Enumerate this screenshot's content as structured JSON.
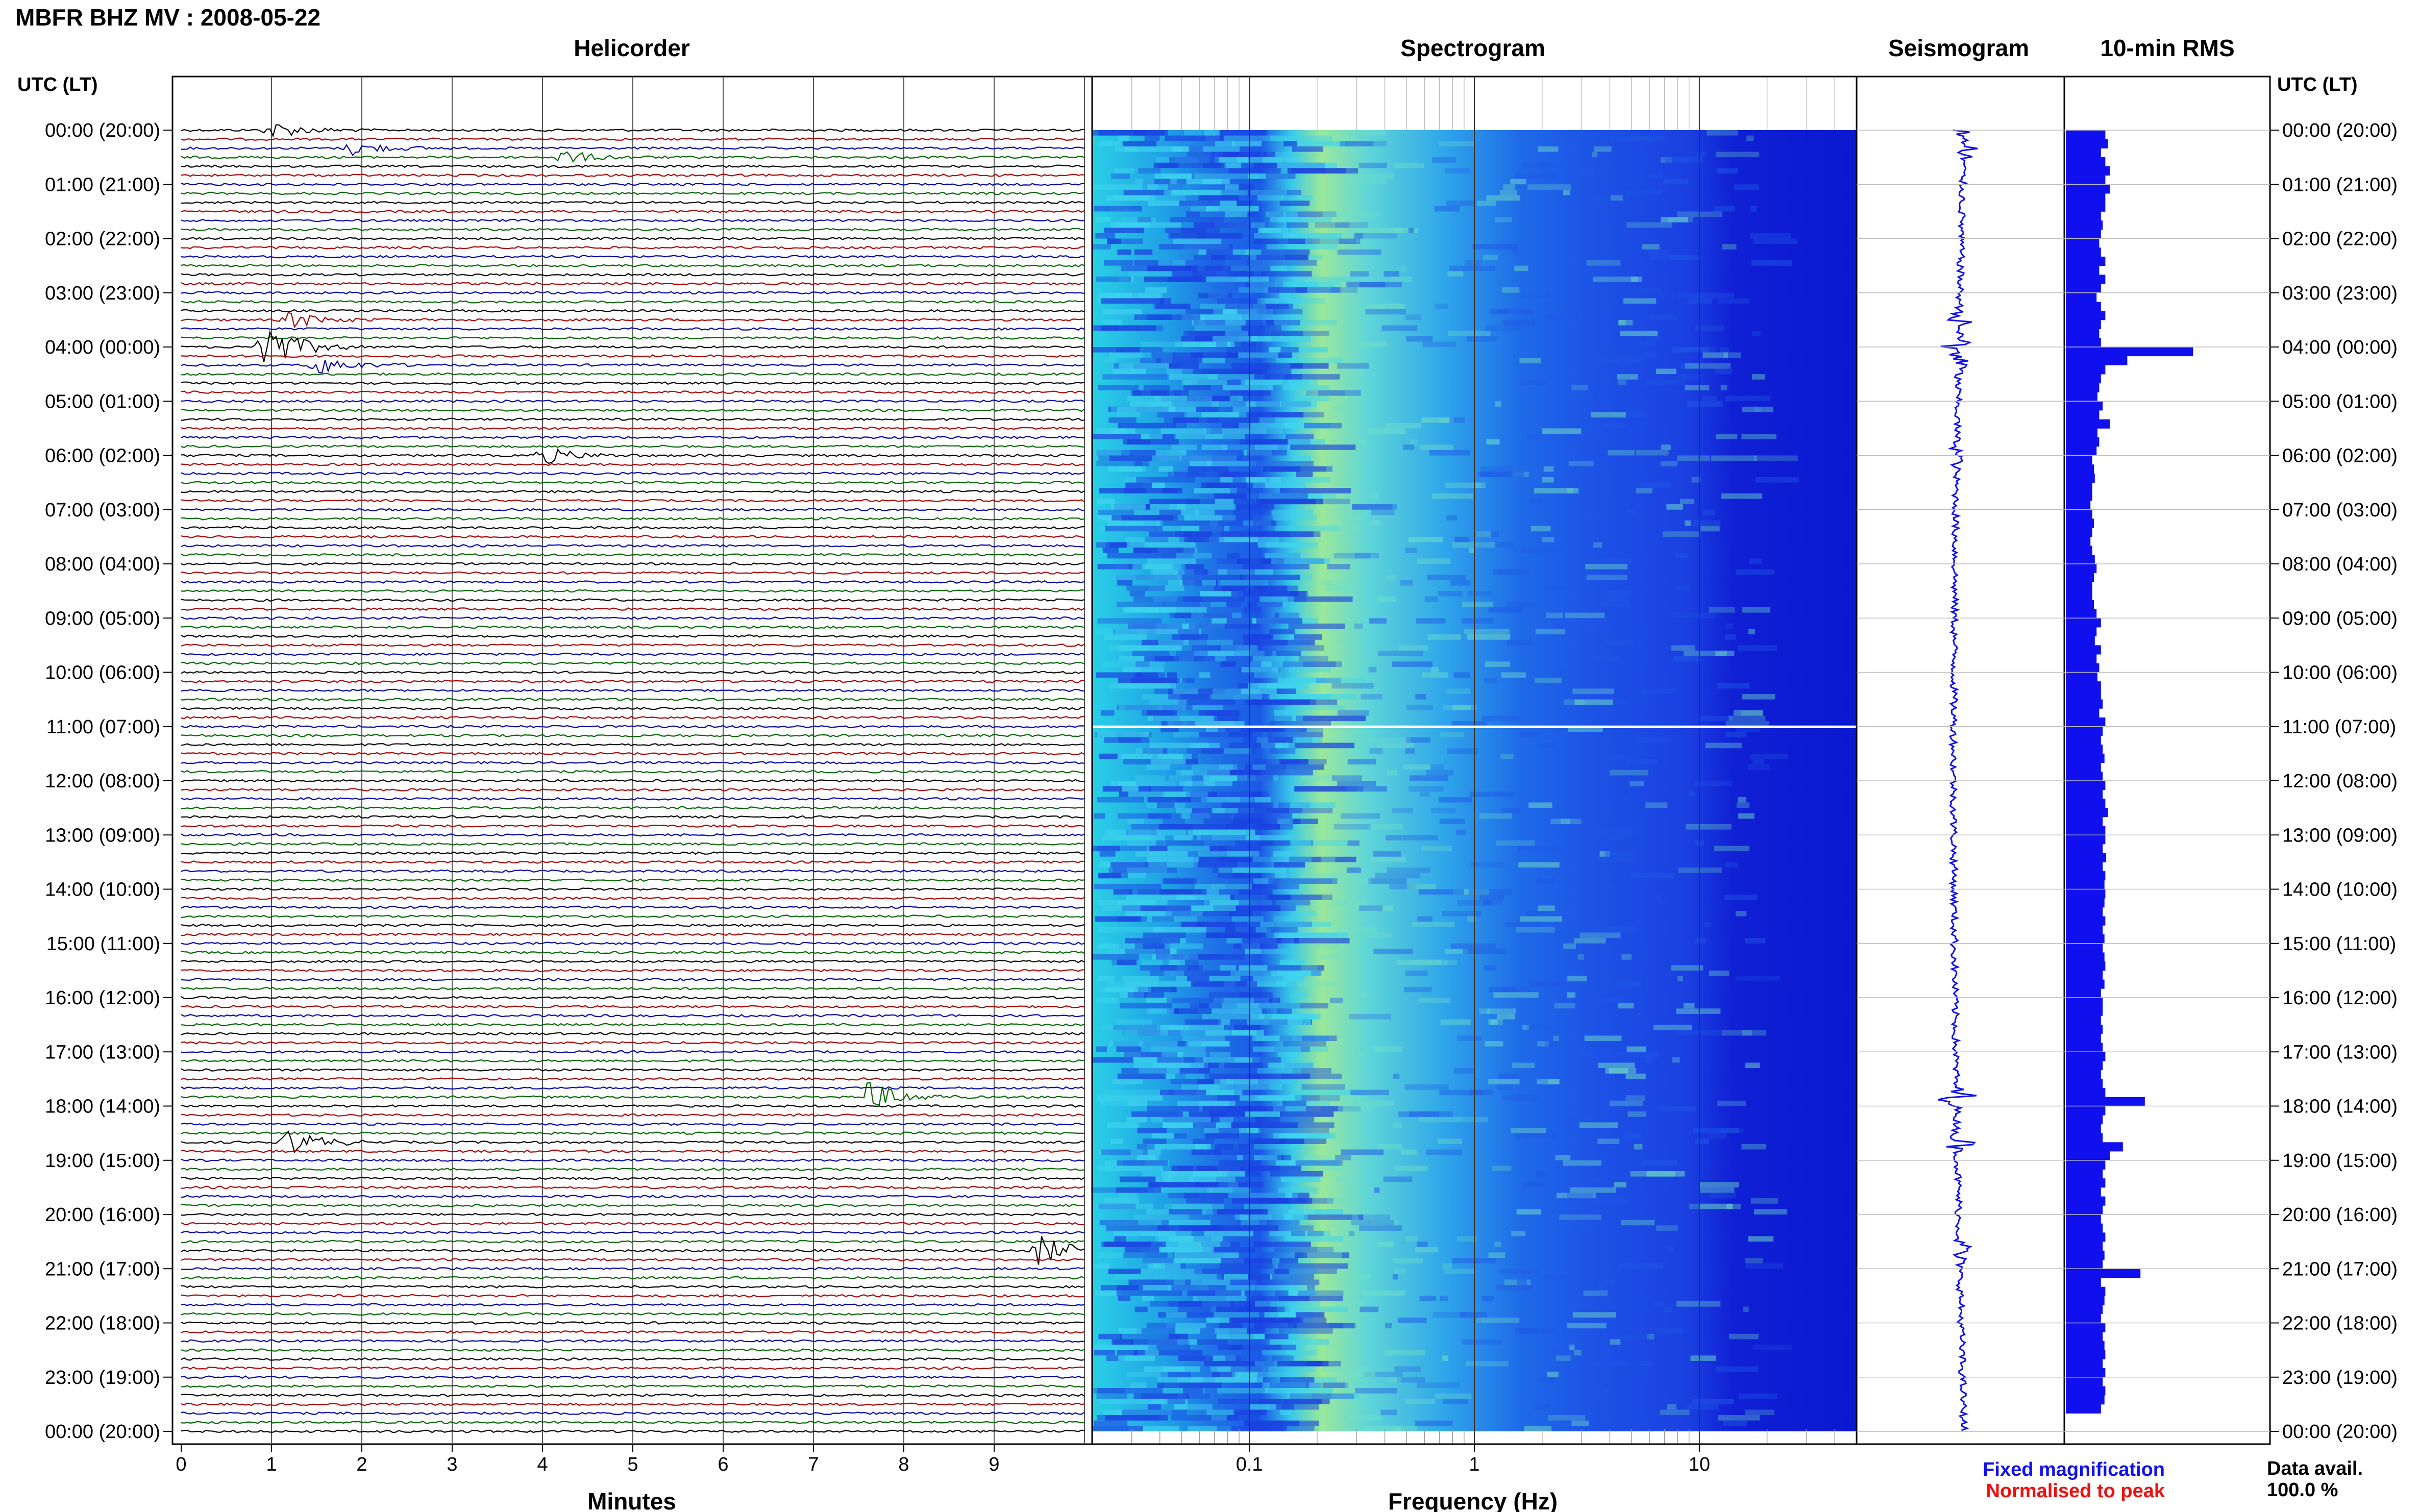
{
  "header": {
    "title": "MBFR BHZ MV : 2008-05-22"
  },
  "panels": {
    "helicorder": "Helicorder",
    "spectrogram": "Spectrogram",
    "seismogram": "Seismogram",
    "rms": "10-min RMS"
  },
  "axes": {
    "time_label_left": "UTC (LT)",
    "time_label_right": "UTC (LT)",
    "helicorder_xlabel": "Minutes",
    "spectrogram_xlabel": "Frequency (Hz)"
  },
  "legend": {
    "fixed": "Fixed magnification",
    "normalised": "Normalised to peak",
    "fixed_color": "#1010ee",
    "normalised_color": "#ee1010"
  },
  "data_avail": {
    "label": "Data avail.",
    "value": "100.0 %"
  },
  "chart_data": {
    "type": "seismic_summary",
    "time_ticks": [
      "00:00 (20:00)",
      "01:00 (21:00)",
      "02:00 (22:00)",
      "03:00 (23:00)",
      "04:00 (00:00)",
      "05:00 (01:00)",
      "06:00 (02:00)",
      "07:00 (03:00)",
      "08:00 (04:00)",
      "09:00 (05:00)",
      "10:00 (06:00)",
      "11:00 (07:00)",
      "12:00 (08:00)",
      "13:00 (09:00)",
      "14:00 (10:00)",
      "15:00 (11:00)",
      "16:00 (12:00)",
      "17:00 (13:00)",
      "18:00 (14:00)",
      "19:00 (15:00)",
      "20:00 (16:00)",
      "21:00 (17:00)",
      "22:00 (18:00)",
      "23:00 (19:00)",
      "00:00 (20:00)"
    ],
    "helicorder": {
      "minutes_ticks": [
        "0",
        "1",
        "2",
        "3",
        "4",
        "5",
        "6",
        "7",
        "8",
        "9"
      ],
      "minutes_range": [
        0,
        10
      ],
      "lines_per_hour": 6,
      "trace_colors": [
        "#000000",
        "#aa0000",
        "#0000aa",
        "#006600"
      ],
      "events": [
        {
          "hour": 0.0,
          "minute": 1.0,
          "amp": 0.3
        },
        {
          "hour": 0.33,
          "minute": 1.9,
          "amp": 0.25
        },
        {
          "hour": 0.5,
          "minute": 4.2,
          "amp": 0.25
        },
        {
          "hour": 3.5,
          "minute": 1.2,
          "amp": 0.3
        },
        {
          "hour": 4.0,
          "minute": 0.9,
          "amp": 1.0
        },
        {
          "hour": 4.33,
          "minute": 1.5,
          "amp": 0.35
        },
        {
          "hour": 6.0,
          "minute": 4.0,
          "amp": 0.3
        },
        {
          "hour": 17.83,
          "minute": 7.6,
          "amp": 0.55
        },
        {
          "hour": 18.67,
          "minute": 1.2,
          "amp": 0.45
        },
        {
          "hour": 20.67,
          "minute": 9.5,
          "amp": 0.55
        }
      ]
    },
    "spectrogram": {
      "xscale": "log",
      "xlim_hz": [
        0.02,
        50
      ],
      "x_ticks": [
        "0.1",
        "1",
        "10"
      ]
    },
    "rms": {
      "bins_per_hour": 6,
      "values": [
        0.45,
        0.48,
        0.4,
        0.45,
        0.5,
        0.45,
        0.5,
        0.45,
        0.45,
        0.4,
        0.42,
        0.4,
        0.38,
        0.4,
        0.45,
        0.38,
        0.45,
        0.4,
        0.35,
        0.4,
        0.45,
        0.4,
        0.38,
        0.4,
        1.45,
        0.7,
        0.45,
        0.4,
        0.38,
        0.36,
        0.42,
        0.38,
        0.5,
        0.36,
        0.38,
        0.35,
        0.3,
        0.32,
        0.33,
        0.3,
        0.3,
        0.28,
        0.3,
        0.32,
        0.3,
        0.28,
        0.3,
        0.33,
        0.35,
        0.32,
        0.3,
        0.3,
        0.32,
        0.35,
        0.4,
        0.35,
        0.33,
        0.4,
        0.35,
        0.38,
        0.36,
        0.4,
        0.4,
        0.42,
        0.38,
        0.45,
        0.42,
        0.4,
        0.42,
        0.44,
        0.4,
        0.42,
        0.45,
        0.42,
        0.45,
        0.48,
        0.42,
        0.45,
        0.45,
        0.42,
        0.46,
        0.42,
        0.45,
        0.44,
        0.45,
        0.44,
        0.42,
        0.45,
        0.42,
        0.44,
        0.42,
        0.44,
        0.45,
        0.42,
        0.44,
        0.4,
        0.42,
        0.42,
        0.4,
        0.42,
        0.4,
        0.42,
        0.45,
        0.42,
        0.4,
        0.42,
        0.45,
        0.9,
        0.45,
        0.42,
        0.4,
        0.42,
        0.65,
        0.5,
        0.45,
        0.42,
        0.45,
        0.4,
        0.45,
        0.42,
        0.4,
        0.42,
        0.45,
        0.42,
        0.44,
        0.42,
        0.85,
        0.4,
        0.45,
        0.44,
        0.42,
        0.4,
        0.45,
        0.42,
        0.44,
        0.45,
        0.42,
        0.45,
        0.42,
        0.45,
        0.44,
        0.4
      ]
    }
  }
}
